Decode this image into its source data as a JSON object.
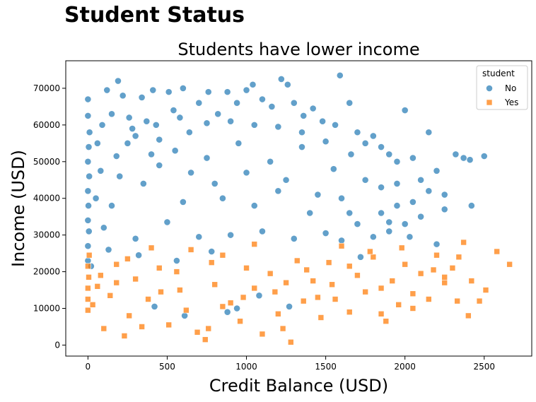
{
  "figure": {
    "suptitle": "Student Status"
  },
  "chart_data": {
    "type": "scatter",
    "title": "Students have lower income",
    "xlabel": "Credit Balance (USD)",
    "ylabel": "Income (USD)",
    "xlim": [
      -140,
      2800
    ],
    "ylim": [
      -3000,
      77500
    ],
    "xticks": [
      0,
      500,
      1000,
      1500,
      2000,
      2500
    ],
    "yticks": [
      0,
      10000,
      20000,
      30000,
      40000,
      50000,
      60000,
      70000
    ],
    "grid": false,
    "legend": {
      "title": "student",
      "placement": "top-right"
    },
    "series": [
      {
        "name": "No",
        "marker": "circle",
        "color": "#1f77b4",
        "points": [
          [
            0,
            67000
          ],
          [
            0,
            62500
          ],
          [
            10,
            58000
          ],
          [
            5,
            54000
          ],
          [
            0,
            50000
          ],
          [
            8,
            46000
          ],
          [
            0,
            42000
          ],
          [
            3,
            38000
          ],
          [
            0,
            34000
          ],
          [
            6,
            31000
          ],
          [
            0,
            27000
          ],
          [
            0,
            23000
          ],
          [
            20,
            21500
          ],
          [
            60,
            55000
          ],
          [
            90,
            60000
          ],
          [
            120,
            69500
          ],
          [
            150,
            63000
          ],
          [
            190,
            72000
          ],
          [
            220,
            68000
          ],
          [
            260,
            62000
          ],
          [
            300,
            57000
          ],
          [
            340,
            67500
          ],
          [
            370,
            61000
          ],
          [
            410,
            69500
          ],
          [
            450,
            56000
          ],
          [
            510,
            69000
          ],
          [
            540,
            64000
          ],
          [
            600,
            70000
          ],
          [
            640,
            58000
          ],
          [
            700,
            66000
          ],
          [
            760,
            69000
          ],
          [
            820,
            63000
          ],
          [
            880,
            69000
          ],
          [
            940,
            66000
          ],
          [
            1000,
            69500
          ],
          [
            1040,
            71000
          ],
          [
            1100,
            67000
          ],
          [
            1160,
            65000
          ],
          [
            1220,
            72500
          ],
          [
            1260,
            71000
          ],
          [
            1300,
            66000
          ],
          [
            1360,
            62500
          ],
          [
            1420,
            64500
          ],
          [
            1480,
            61000
          ],
          [
            1560,
            60000
          ],
          [
            1590,
            73500
          ],
          [
            1650,
            66000
          ],
          [
            1700,
            58000
          ],
          [
            1750,
            55000
          ],
          [
            1800,
            57000
          ],
          [
            1850,
            54000
          ],
          [
            1900,
            52000
          ],
          [
            1950,
            50000
          ],
          [
            2000,
            64000
          ],
          [
            2050,
            51000
          ],
          [
            2100,
            45000
          ],
          [
            2150,
            58000
          ],
          [
            2200,
            47500
          ],
          [
            2250,
            41000
          ],
          [
            2320,
            52000
          ],
          [
            2370,
            51000
          ],
          [
            2410,
            50500
          ],
          [
            2500,
            51500
          ],
          [
            2420,
            38000
          ],
          [
            2250,
            37000
          ],
          [
            2200,
            27500
          ],
          [
            2100,
            35000
          ],
          [
            2000,
            33000
          ],
          [
            1950,
            38000
          ],
          [
            1900,
            31000
          ],
          [
            1850,
            36000
          ],
          [
            1800,
            29500
          ],
          [
            1700,
            33000
          ],
          [
            1600,
            40000
          ],
          [
            1500,
            30500
          ],
          [
            1400,
            36000
          ],
          [
            1300,
            29000
          ],
          [
            1200,
            42000
          ],
          [
            1100,
            31000
          ],
          [
            1000,
            47000
          ],
          [
            900,
            30000
          ],
          [
            800,
            44000
          ],
          [
            700,
            29500
          ],
          [
            600,
            39000
          ],
          [
            500,
            33500
          ],
          [
            400,
            52000
          ],
          [
            300,
            29000
          ],
          [
            200,
            46000
          ],
          [
            100,
            32000
          ],
          [
            50,
            40000
          ],
          [
            150,
            38000
          ],
          [
            250,
            55000
          ],
          [
            350,
            44000
          ],
          [
            450,
            49000
          ],
          [
            550,
            53000
          ],
          [
            650,
            47000
          ],
          [
            750,
            51000
          ],
          [
            850,
            40000
          ],
          [
            950,
            55000
          ],
          [
            1050,
            38000
          ],
          [
            1150,
            50000
          ],
          [
            1250,
            45000
          ],
          [
            1350,
            54000
          ],
          [
            1450,
            41000
          ],
          [
            1550,
            48000
          ],
          [
            1650,
            36000
          ],
          [
            1750,
            45000
          ],
          [
            1850,
            43000
          ],
          [
            1950,
            44000
          ],
          [
            2050,
            39000
          ],
          [
            2150,
            42000
          ],
          [
            130,
            26000
          ],
          [
            320,
            24500
          ],
          [
            560,
            23000
          ],
          [
            780,
            25500
          ],
          [
            940,
            10000
          ],
          [
            1080,
            13500
          ],
          [
            1270,
            10500
          ],
          [
            610,
            8000
          ],
          [
            420,
            10500
          ],
          [
            880,
            9000
          ],
          [
            1600,
            28500
          ],
          [
            1720,
            24000
          ],
          [
            1900,
            33500
          ],
          [
            2030,
            29500
          ],
          [
            1660,
            52000
          ],
          [
            1500,
            55500
          ],
          [
            1350,
            58000
          ],
          [
            1200,
            59500
          ],
          [
            1050,
            60000
          ],
          [
            900,
            61000
          ],
          [
            750,
            60500
          ],
          [
            580,
            62000
          ],
          [
            430,
            60000
          ],
          [
            280,
            59000
          ],
          [
            180,
            51500
          ],
          [
            80,
            47500
          ]
        ]
      },
      {
        "name": "Yes",
        "marker": "square",
        "color": "#ff7f0e",
        "points": [
          [
            0,
            9500
          ],
          [
            0,
            12500
          ],
          [
            0,
            15500
          ],
          [
            5,
            18500
          ],
          [
            0,
            21500
          ],
          [
            8,
            24500
          ],
          [
            30,
            11000
          ],
          [
            60,
            16000
          ],
          [
            100,
            4500
          ],
          [
            140,
            13500
          ],
          [
            180,
            22000
          ],
          [
            230,
            2500
          ],
          [
            260,
            8000
          ],
          [
            300,
            18000
          ],
          [
            340,
            5000
          ],
          [
            400,
            26500
          ],
          [
            460,
            14500
          ],
          [
            510,
            5500
          ],
          [
            560,
            20000
          ],
          [
            620,
            9500
          ],
          [
            690,
            3500
          ],
          [
            740,
            1500
          ],
          [
            760,
            4500
          ],
          [
            800,
            16500
          ],
          [
            850,
            24500
          ],
          [
            900,
            11500
          ],
          [
            960,
            6500
          ],
          [
            1000,
            21000
          ],
          [
            1050,
            15500
          ],
          [
            1100,
            3000
          ],
          [
            1150,
            19500
          ],
          [
            1200,
            8500
          ],
          [
            1230,
            4500
          ],
          [
            1280,
            800
          ],
          [
            1320,
            23000
          ],
          [
            1360,
            12000
          ],
          [
            1420,
            17500
          ],
          [
            1470,
            7500
          ],
          [
            1520,
            22500
          ],
          [
            1560,
            12500
          ],
          [
            1600,
            27000
          ],
          [
            1650,
            9000
          ],
          [
            1700,
            19000
          ],
          [
            1750,
            14500
          ],
          [
            1800,
            24000
          ],
          [
            1850,
            8500
          ],
          [
            1880,
            6500
          ],
          [
            1920,
            17500
          ],
          [
            1960,
            11000
          ],
          [
            2000,
            22000
          ],
          [
            2050,
            14000
          ],
          [
            2100,
            19500
          ],
          [
            2150,
            12500
          ],
          [
            2200,
            24500
          ],
          [
            2250,
            17000
          ],
          [
            2300,
            21000
          ],
          [
            2330,
            12000
          ],
          [
            2370,
            28000
          ],
          [
            2400,
            8000
          ],
          [
            2420,
            17500
          ],
          [
            2470,
            12000
          ],
          [
            2510,
            15000
          ],
          [
            2580,
            25500
          ],
          [
            2660,
            22000
          ],
          [
            2340,
            24000
          ],
          [
            2180,
            20500
          ],
          [
            1980,
            26500
          ],
          [
            1780,
            25500
          ],
          [
            1540,
            16500
          ],
          [
            1380,
            20500
          ],
          [
            1180,
            14500
          ],
          [
            980,
            13000
          ],
          [
            780,
            22500
          ],
          [
            580,
            15000
          ],
          [
            380,
            12500
          ],
          [
            180,
            17000
          ],
          [
            80,
            19000
          ],
          [
            250,
            23500
          ],
          [
            450,
            21000
          ],
          [
            650,
            26000
          ],
          [
            850,
            10500
          ],
          [
            1050,
            27500
          ],
          [
            1250,
            17000
          ],
          [
            1450,
            13000
          ],
          [
            1650,
            21500
          ],
          [
            1850,
            15500
          ],
          [
            2050,
            10000
          ],
          [
            2250,
            18500
          ]
        ]
      }
    ]
  }
}
